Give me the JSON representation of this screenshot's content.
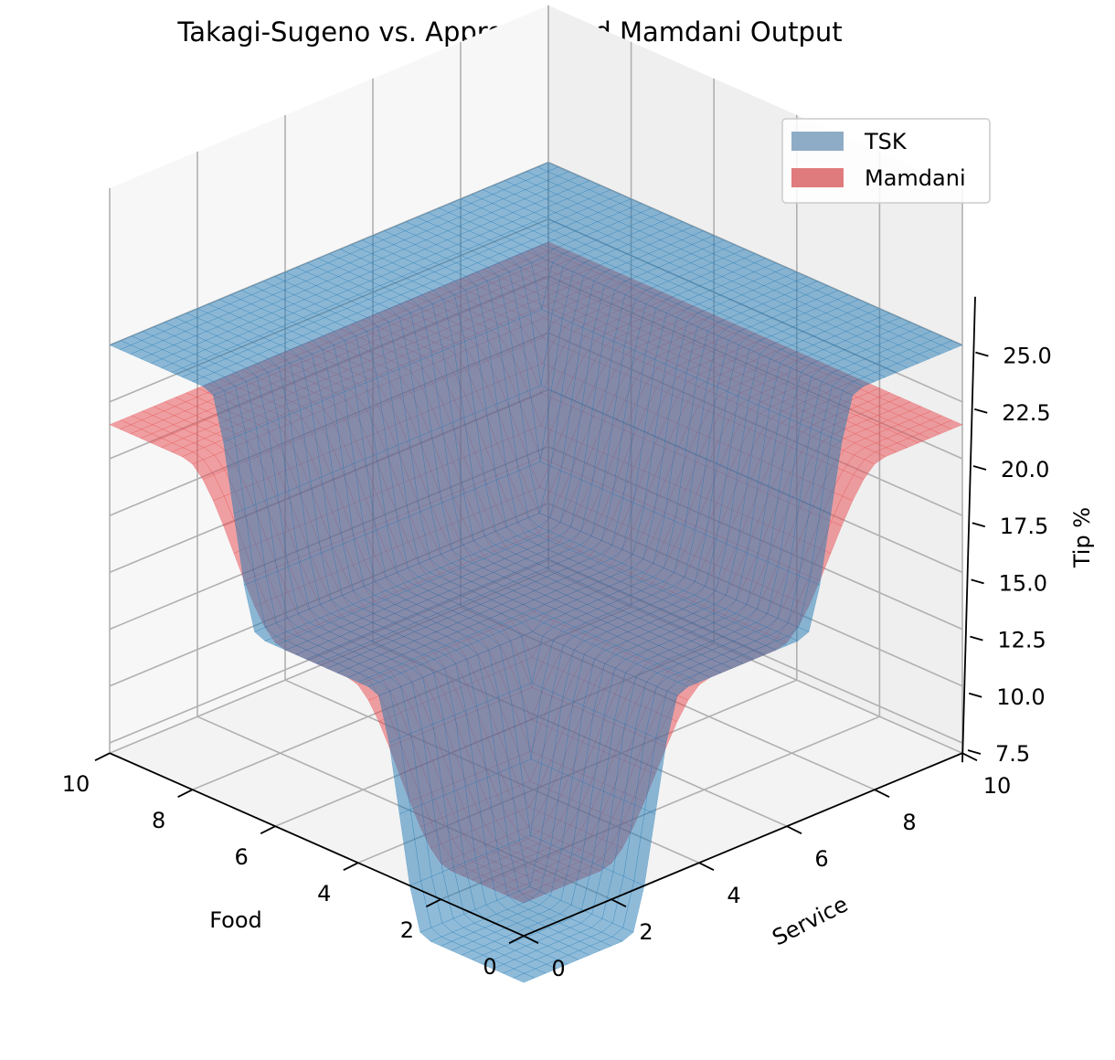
{
  "chart_data": {
    "type": "surface3d",
    "title": "Takagi-Sugeno vs. Approximated Mamdani Output",
    "xlabel": "Food",
    "ylabel": "Service",
    "zlabel": "Tip %",
    "x_ticks": [
      "0",
      "2",
      "4",
      "6",
      "8",
      "10"
    ],
    "y_ticks": [
      "0",
      "2",
      "4",
      "6",
      "8",
      "10"
    ],
    "z_ticks": [
      "7.5",
      "10.0",
      "12.5",
      "15.0",
      "17.5",
      "20.0",
      "22.5",
      "25.0"
    ],
    "xlim": [
      0,
      10
    ],
    "ylim": [
      0,
      10
    ],
    "zlim": [
      7.5,
      25.0
    ],
    "grid": true,
    "legend_position": "top-right",
    "series": [
      {
        "name": "TSK",
        "color": "#1f77b4",
        "legend_color": "#8facc6",
        "levels": [
          5,
          15,
          25
        ],
        "breakpoints": [
          [
            2.4,
            3.6
          ],
          [
            6.4,
            7.6
          ]
        ]
      },
      {
        "name": "Mamdani",
        "color": "#e8474b",
        "legend_color": "#e07b7d",
        "levels": [
          8.5,
          15,
          21.5
        ],
        "breakpoints": [
          [
            1.8,
            4.2
          ],
          [
            5.8,
            8.2
          ]
        ]
      }
    ]
  }
}
